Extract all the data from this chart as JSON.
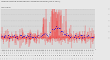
{
  "title": "Milwaukee Weather Normalized and Average Wind Direction (Last 24 Hours)",
  "subtitle": "Wind Speed",
  "bg_color": "#e8e8e8",
  "plot_bg_color": "#d8d8d8",
  "grid_color": "#aaaaaa",
  "bar_color": "#ff0000",
  "dot_color": "#0000dd",
  "ylim": [
    -2.0,
    5.0
  ],
  "ytick_vals": [
    0,
    1,
    2,
    3,
    4,
    5
  ],
  "ytick_labels": [
    "0",
    "1",
    "2",
    "3",
    "4",
    "5"
  ],
  "n_points": 288,
  "seed": 7
}
